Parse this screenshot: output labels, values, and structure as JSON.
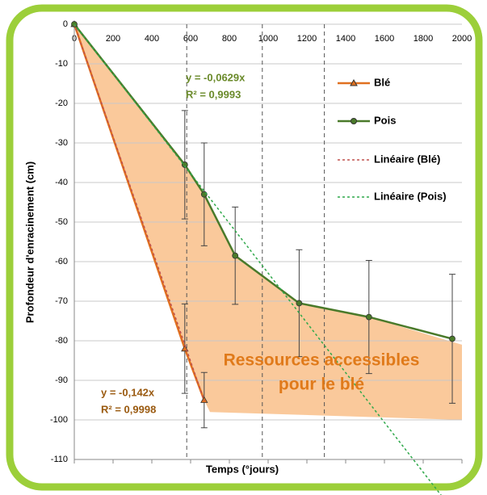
{
  "chart_data": {
    "type": "line",
    "xlabel": "Temps (°jours)",
    "ylabel": "Profondeur d'enracinement (cm)",
    "xlim": [
      0,
      2000
    ],
    "ylim": [
      -110,
      0
    ],
    "xticks": [
      0,
      200,
      400,
      600,
      800,
      1000,
      1200,
      1400,
      1600,
      1800,
      2000
    ],
    "yticks": [
      0,
      -10,
      -20,
      -30,
      -40,
      -50,
      -60,
      -70,
      -80,
      -90,
      -100,
      -110
    ],
    "grid": true,
    "vlines": [
      580,
      970,
      1290
    ],
    "series": [
      {
        "name": "Blé",
        "color": "#e07020",
        "marker": "triangle",
        "x": [
          0,
          570,
          670
        ],
        "values": [
          0,
          -82,
          -95
        ],
        "errors": [
          null,
          11.3,
          7
        ]
      },
      {
        "name": "Pois",
        "color": "#4a7a2a",
        "marker": "circle",
        "x": [
          0,
          570,
          670,
          830,
          1160,
          1520,
          1950
        ],
        "values": [
          0,
          -35.5,
          -43,
          -58.5,
          -70.5,
          -74,
          -79.5
        ],
        "errors": [
          null,
          13.7,
          13,
          12.3,
          13.5,
          14.3,
          16.3
        ]
      },
      {
        "name": "Linéaire (Blé)",
        "color": "#c0504d",
        "dashed": true,
        "slope": -0.142,
        "xrange": [
          0,
          670
        ]
      },
      {
        "name": "Linéaire (Pois)",
        "color": "#2ea84a",
        "dashed": true,
        "slope": -0.0629,
        "xrange": [
          0,
          1950
        ]
      }
    ],
    "shaded_area": {
      "color": "#f9c08a",
      "x": [
        0,
        570,
        670,
        830,
        1160,
        1520,
        2000,
        2000,
        700,
        670,
        570
      ],
      "y": [
        0,
        -35.5,
        -43,
        -58.5,
        -70.5,
        -74,
        -81,
        -100,
        -98,
        -95,
        -82
      ]
    },
    "annotations": [
      {
        "text": "y = -0,0629x",
        "color": "#6a8a2a"
      },
      {
        "text": "R² = 0,9993",
        "color": "#6a8a2a"
      },
      {
        "text": "y = -0,142x",
        "color": "#9a5a10"
      },
      {
        "text": "R² = 0,9998",
        "color": "#9a5a10"
      },
      {
        "text": "Ressources accessibles",
        "color": "#e07a1a"
      },
      {
        "text": "pour le blé",
        "color": "#e07a1a"
      }
    ]
  }
}
